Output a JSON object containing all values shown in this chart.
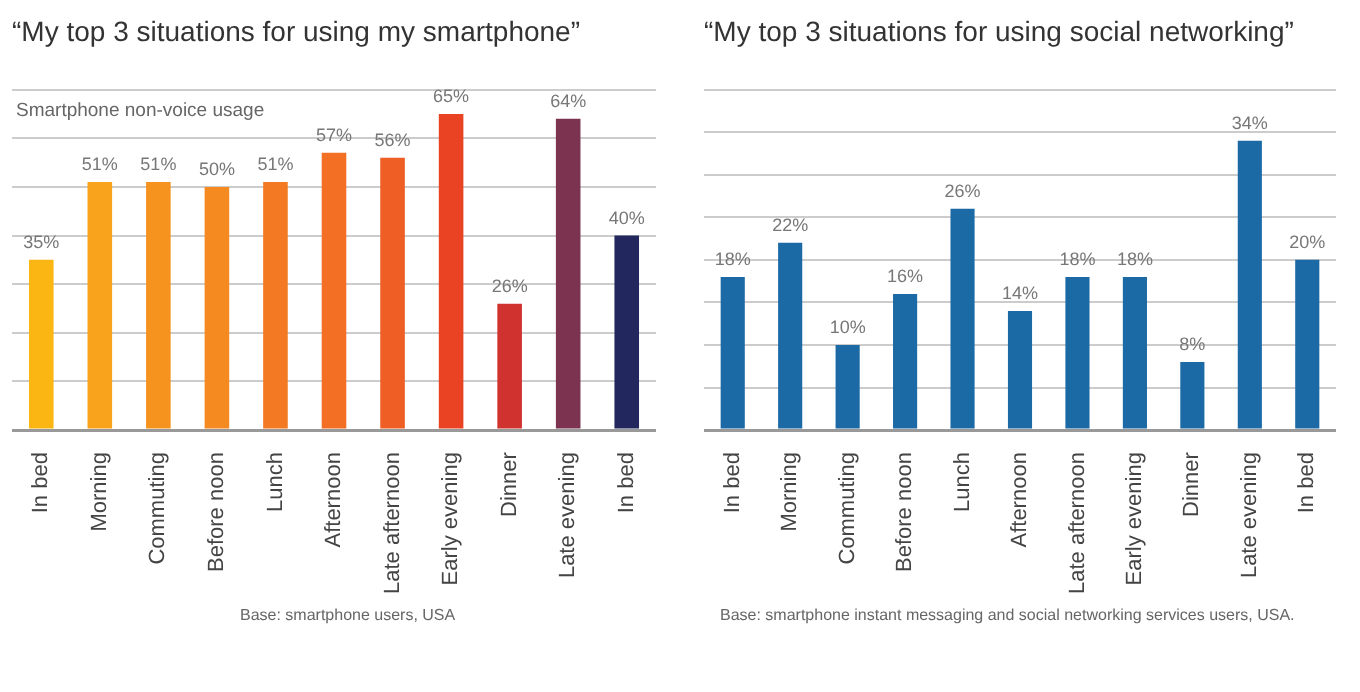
{
  "chart_data": [
    {
      "type": "bar",
      "title": "“My top 3 situations for using my smartphone”",
      "subtitle": "Smartphone non-voice usage",
      "categories": [
        "In bed",
        "Morning",
        "Commuting",
        "Before noon",
        "Lunch",
        "Afternoon",
        "Late afternoon",
        "Early evening",
        "Dinner",
        "Late evening",
        "In bed"
      ],
      "values": [
        35,
        51,
        51,
        50,
        51,
        57,
        56,
        65,
        26,
        64,
        40
      ],
      "value_labels": [
        "35%",
        "51%",
        "51%",
        "50%",
        "51%",
        "57%",
        "56%",
        "65%",
        "26%",
        "64%",
        "40%"
      ],
      "colors": [
        "#fbb613",
        "#f9a21c",
        "#f6931f",
        "#f58a20",
        "#f37a22",
        "#f26f23",
        "#ef5e25",
        "#e94324",
        "#d03230",
        "#7b3350",
        "#22285e"
      ],
      "ylim": [
        0,
        70
      ],
      "yticks": [
        {
          "value": 0,
          "label": null
        },
        {
          "value": 10,
          "label": null
        },
        {
          "value": 20,
          "label": null
        },
        {
          "value": 30,
          "label": null
        },
        {
          "value": 40,
          "label": null
        },
        {
          "value": 50,
          "label": null
        },
        {
          "value": 60,
          "label": null
        },
        {
          "value": 70,
          "label": null
        }
      ],
      "tick_labels": "x",
      "grid": "y",
      "annotations": [
        "Base: smartphone users, USA"
      ]
    },
    {
      "type": "bar",
      "title": "“My top 3 situations for using social networking”",
      "categories": [
        "In bed",
        "Morning",
        "Commuting",
        "Before noon",
        "Lunch",
        "Afternoon",
        "Late afternoon",
        "Early evening",
        "Dinner",
        "Late evening",
        "In bed"
      ],
      "values": [
        18,
        22,
        10,
        16,
        26,
        14,
        18,
        18,
        8,
        34,
        20
      ],
      "value_labels": [
        "18%",
        "22%",
        "10%",
        "16%",
        "26%",
        "14%",
        "18%",
        "18%",
        "8%",
        "34%",
        "20%"
      ],
      "color": "#1b6aa5",
      "ylim": [
        0,
        40
      ],
      "yticks": [
        {
          "value": 0,
          "label": null
        },
        {
          "value": 5,
          "label": null
        },
        {
          "value": 10,
          "label": null
        },
        {
          "value": 15,
          "label": null
        },
        {
          "value": 20,
          "label": null
        },
        {
          "value": 25,
          "label": null
        },
        {
          "value": 30,
          "label": null
        },
        {
          "value": 35,
          "label": null
        },
        {
          "value": 40,
          "label": null
        }
      ],
      "tick_labels": "x",
      "grid": "y",
      "annotations": [
        "Base: smartphone instant messaging and social networking services users, USA."
      ]
    }
  ]
}
